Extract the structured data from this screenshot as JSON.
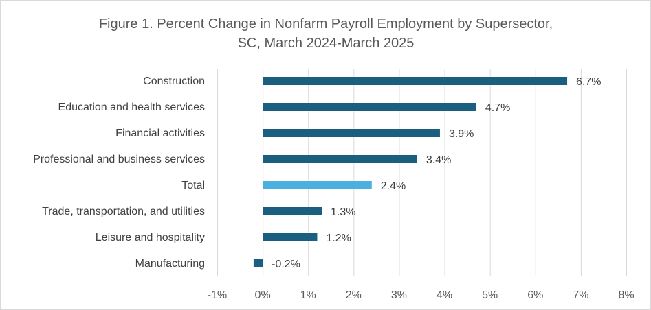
{
  "chart_data": {
    "type": "bar",
    "orientation": "horizontal",
    "title": "Figure 1. Percent Change in Nonfarm Payroll Employment by Supersector, SC, March 2024-March 2025",
    "title_lines": [
      "Figure 1. Percent Change in Nonfarm Payroll Employment by Supersector,",
      "SC, March 2024-March 2025"
    ],
    "categories": [
      "Construction",
      "Education and health services",
      "Financial activities",
      "Professional and business services",
      "Total",
      "Trade, transportation, and utilities",
      "Leisure and hospitality",
      "Manufacturing"
    ],
    "values": [
      6.7,
      4.7,
      3.9,
      3.4,
      2.4,
      1.3,
      1.2,
      -0.2
    ],
    "data_labels": [
      "6.7%",
      "4.7%",
      "3.9%",
      "3.4%",
      "2.4%",
      "1.3%",
      "1.2%",
      "-0.2%"
    ],
    "xlabel": "",
    "ylabel": "",
    "xlim": [
      -1,
      8
    ],
    "xticks": [
      -1,
      0,
      1,
      2,
      3,
      4,
      5,
      6,
      7,
      8
    ],
    "xtick_labels": [
      "-1%",
      "0%",
      "1%",
      "2%",
      "3%",
      "4%",
      "5%",
      "6%",
      "7%",
      "8%"
    ],
    "grid": "vertical",
    "legend": "none",
    "colors": {
      "default": "#1a5e80",
      "highlight": "#4bafdf",
      "highlight_category": "Total"
    }
  }
}
